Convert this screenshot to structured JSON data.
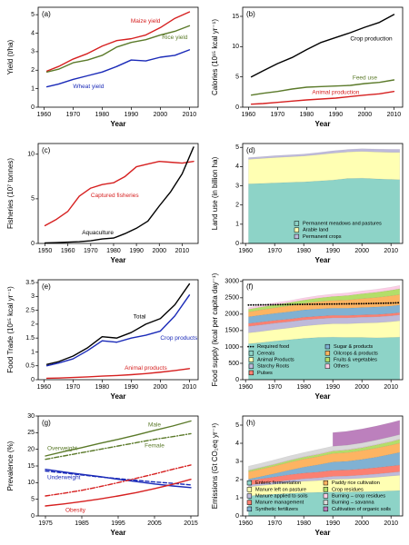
{
  "chart_data": [
    {
      "type": "line",
      "panel": "(a)",
      "ylabel": "Yield (t/ha)",
      "xlabel": "Year",
      "x": [
        1961,
        1965,
        1970,
        1975,
        1980,
        1985,
        1990,
        1995,
        2000,
        2005,
        2010
      ],
      "xlim": [
        1958,
        2013
      ],
      "xticks": [
        1960,
        1970,
        1980,
        1990,
        2000,
        2010
      ],
      "ylim": [
        0,
        5.4
      ],
      "yticks": [
        0,
        1,
        2,
        3,
        4,
        5
      ],
      "series": [
        {
          "name": "Maize yield",
          "color": "#d62020",
          "values": [
            1.95,
            2.2,
            2.6,
            2.9,
            3.3,
            3.6,
            3.7,
            3.9,
            4.3,
            4.8,
            5.15
          ]
        },
        {
          "name": "Rice yield",
          "color": "#5b7a2a",
          "values": [
            1.9,
            2.05,
            2.4,
            2.55,
            2.8,
            3.25,
            3.5,
            3.65,
            3.9,
            4.1,
            4.4
          ]
        },
        {
          "name": "Wheat yield",
          "color": "#1a2ab8",
          "values": [
            1.1,
            1.25,
            1.5,
            1.7,
            1.9,
            2.2,
            2.55,
            2.5,
            2.7,
            2.8,
            3.1
          ]
        }
      ]
    },
    {
      "type": "line",
      "panel": "(b)",
      "ylabel": "Calories (10¹⁵ kcal yr⁻¹)",
      "xlabel": "Year",
      "x": [
        1961,
        1965,
        1970,
        1975,
        1980,
        1985,
        1990,
        1995,
        2000,
        2005,
        2010
      ],
      "xlim": [
        1958,
        2013
      ],
      "xticks": [
        1960,
        1970,
        1980,
        1990,
        2000,
        2010
      ],
      "ylim": [
        0,
        16.5
      ],
      "yticks": [
        0,
        5,
        10,
        15
      ],
      "series": [
        {
          "name": "Crop production",
          "color": "#000000",
          "values": [
            5,
            6,
            7.2,
            8.2,
            9.5,
            10.7,
            11.5,
            12.3,
            13.2,
            14,
            15.3
          ]
        },
        {
          "name": "Feed use",
          "color": "#5b7a2a",
          "values": [
            2,
            2.3,
            2.6,
            3,
            3.3,
            3.4,
            3.5,
            3.6,
            3.9,
            4.1,
            4.5
          ]
        },
        {
          "name": "Animal production",
          "color": "#d62020",
          "values": [
            0.5,
            0.6,
            0.8,
            1,
            1.2,
            1.35,
            1.5,
            1.75,
            2,
            2.2,
            2.6
          ]
        }
      ]
    },
    {
      "type": "line",
      "panel": "(c)",
      "ylabel": "Fisheries (10⁷ tonnes)",
      "xlabel": "Year",
      "x": [
        1950,
        1955,
        1960,
        1965,
        1970,
        1975,
        1980,
        1985,
        1990,
        1995,
        2000,
        2005,
        2010,
        2015
      ],
      "xlim": [
        1947,
        2017
      ],
      "xticks": [
        1950,
        1960,
        1970,
        1980,
        1990,
        2000,
        2010
      ],
      "ylim": [
        0,
        11.2
      ],
      "yticks": [
        0,
        5,
        10
      ],
      "series": [
        {
          "name": "Captured fisheries",
          "color": "#d62020",
          "values": [
            2,
            2.7,
            3.6,
            5.3,
            6.2,
            6.6,
            6.8,
            7.5,
            8.6,
            8.9,
            9.2,
            9.1,
            9,
            9.2
          ]
        },
        {
          "name": "Aquaculture",
          "color": "#000000",
          "values": [
            0.06,
            0.1,
            0.15,
            0.2,
            0.3,
            0.5,
            0.6,
            1.1,
            1.7,
            2.5,
            4.2,
            5.8,
            7.8,
            10.8
          ]
        }
      ]
    },
    {
      "type": "area",
      "panel": "(d)",
      "ylabel": "Land use (in billion ha)",
      "xlabel": "Year",
      "x": [
        1961,
        1965,
        1970,
        1975,
        1980,
        1985,
        1990,
        1995,
        2000,
        2005,
        2010,
        2013
      ],
      "xlim": [
        1959,
        2014
      ],
      "xticks": [
        1960,
        1970,
        1980,
        1990,
        2000,
        2010
      ],
      "ylim": [
        0,
        5.2
      ],
      "yticks": [
        0,
        1,
        2,
        3,
        4,
        5
      ],
      "legend": "bottom-right",
      "legend_columns": 1,
      "series": [
        {
          "name": "Permanent meadows and pastures",
          "color": "#8dd3c7",
          "values": [
            3.1,
            3.12,
            3.15,
            3.18,
            3.2,
            3.25,
            3.3,
            3.38,
            3.4,
            3.36,
            3.33,
            3.32
          ]
        },
        {
          "name": "Arable land",
          "color": "#ffffb3",
          "values": [
            1.28,
            1.3,
            1.32,
            1.33,
            1.35,
            1.37,
            1.4,
            1.38,
            1.39,
            1.4,
            1.41,
            1.42
          ]
        },
        {
          "name": "Permanent crops",
          "color": "#bebada",
          "values": [
            0.09,
            0.09,
            0.1,
            0.1,
            0.1,
            0.11,
            0.12,
            0.13,
            0.14,
            0.15,
            0.16,
            0.16
          ]
        }
      ]
    },
    {
      "type": "line",
      "panel": "(e)",
      "ylabel": "Food Trade (10¹⁵ kcal yr⁻¹)",
      "xlabel": "Year",
      "x": [
        1961,
        1965,
        1970,
        1975,
        1980,
        1985,
        1990,
        1995,
        2000,
        2005,
        2010
      ],
      "xlim": [
        1958,
        2013
      ],
      "xticks": [
        1960,
        1970,
        1980,
        1990,
        2000,
        2010
      ],
      "ylim": [
        0,
        3.6
      ],
      "yticks": [
        0,
        0.5,
        1,
        1.5,
        2,
        2.5,
        3,
        3.5
      ],
      "series": [
        {
          "name": "Total",
          "color": "#000000",
          "values": [
            0.55,
            0.65,
            0.85,
            1.15,
            1.55,
            1.5,
            1.7,
            2,
            2.2,
            2.7,
            3.45
          ]
        },
        {
          "name": "Crop products",
          "color": "#1a2ab8",
          "values": [
            0.5,
            0.6,
            0.75,
            1.05,
            1.4,
            1.35,
            1.5,
            1.6,
            1.75,
            2.3,
            3.05
          ]
        },
        {
          "name": "Animal products",
          "color": "#d62020",
          "values": [
            0.05,
            0.06,
            0.08,
            0.1,
            0.13,
            0.15,
            0.18,
            0.22,
            0.27,
            0.33,
            0.4
          ]
        }
      ]
    },
    {
      "type": "area",
      "panel": "(f)",
      "ylabel": "Food supply (kcal per capita day⁻¹)",
      "xlabel": "Year",
      "x": [
        1961,
        1965,
        1970,
        1975,
        1980,
        1985,
        1990,
        1995,
        2000,
        2005,
        2010,
        2013
      ],
      "xlim": [
        1959,
        2014
      ],
      "xticks": [
        1960,
        1970,
        1980,
        1990,
        2000,
        2010
      ],
      "ylim": [
        0,
        3050
      ],
      "yticks": [
        0,
        500,
        1000,
        1500,
        2000,
        2500,
        3000
      ],
      "legend": "bottom-right",
      "legend_columns": 2,
      "series": [
        {
          "name": "Cereals",
          "color": "#8dd3c7",
          "values": [
            1100,
            1130,
            1180,
            1220,
            1260,
            1290,
            1300,
            1290,
            1290,
            1280,
            1290,
            1300
          ]
        },
        {
          "name": "Animal Products",
          "color": "#ffffb3",
          "values": [
            330,
            340,
            350,
            360,
            380,
            390,
            410,
            420,
            440,
            460,
            480,
            500
          ]
        },
        {
          "name": "Starchy Roots",
          "color": "#bebada",
          "values": [
            200,
            200,
            195,
            190,
            185,
            180,
            180,
            180,
            180,
            180,
            180,
            180
          ]
        },
        {
          "name": "Pulses",
          "color": "#fb8072",
          "values": [
            90,
            88,
            85,
            82,
            80,
            78,
            75,
            72,
            70,
            70,
            70,
            70
          ]
        },
        {
          "name": "Sugar & products",
          "color": "#80b1d3",
          "values": [
            200,
            210,
            215,
            220,
            225,
            225,
            220,
            220,
            225,
            230,
            230,
            230
          ]
        },
        {
          "name": "Oilcrops & products",
          "color": "#fdb462",
          "values": [
            150,
            160,
            170,
            185,
            200,
            220,
            235,
            250,
            270,
            290,
            310,
            320
          ]
        },
        {
          "name": "Fruits & vegetables",
          "color": "#b3de69",
          "values": [
            80,
            85,
            90,
            95,
            100,
            110,
            120,
            135,
            150,
            160,
            170,
            175
          ]
        },
        {
          "name": "Others",
          "color": "#fccde5",
          "values": [
            50,
            55,
            60,
            60,
            65,
            70,
            75,
            80,
            85,
            90,
            95,
            100
          ]
        }
      ],
      "lines": [
        {
          "name": "Required food",
          "color": "#000000",
          "dash": "dotted",
          "values": [
            2280,
            2285,
            2290,
            2295,
            2300,
            2305,
            2310,
            2315,
            2320,
            2330,
            2340,
            2350
          ]
        }
      ]
    },
    {
      "type": "line",
      "panel": "(g)",
      "ylabel": "Prevalence (%)",
      "xlabel": "Year",
      "x": [
        1975,
        1980,
        1985,
        1990,
        1995,
        2000,
        2005,
        2010,
        2015
      ],
      "xlim": [
        1973,
        2017
      ],
      "xticks": [
        1975,
        1985,
        1995,
        2005,
        2015
      ],
      "ylim": [
        0,
        30
      ],
      "yticks": [
        0,
        5,
        10,
        15,
        20,
        25,
        30
      ],
      "groups": [
        {
          "name": "Overweight",
          "color": "#5b7a2a",
          "series": [
            {
              "name": "Male",
              "dash": "solid",
              "values": [
                18,
                19.3,
                20.5,
                21.8,
                23,
                24.3,
                25.7,
                27,
                28.5
              ]
            },
            {
              "name": "Female",
              "dash": "dashdot",
              "values": [
                17,
                18,
                19,
                20,
                21,
                22,
                23,
                23.8,
                24.7
              ]
            }
          ]
        },
        {
          "name": "Underweight",
          "color": "#1a2ab8",
          "series": [
            {
              "dash": "solid",
              "values": [
                14,
                13.2,
                12.5,
                11.8,
                11,
                10.3,
                9.6,
                9,
                8.5
              ]
            },
            {
              "dash": "dash",
              "values": [
                13.5,
                12.9,
                12.3,
                11.7,
                11.2,
                10.7,
                10.2,
                9.8,
                9.3
              ]
            }
          ]
        },
        {
          "name": "Obesity",
          "color": "#d62020",
          "series": [
            {
              "dash": "solid",
              "values": [
                3,
                3.6,
                4.3,
                5.1,
                6,
                7,
                8.2,
                9.5,
                11
              ]
            },
            {
              "dash": "dashdot",
              "values": [
                6,
                6.8,
                7.7,
                8.8,
                10,
                11.3,
                12.6,
                14,
                15.3
              ]
            }
          ]
        }
      ]
    },
    {
      "type": "area",
      "panel": "(h)",
      "ylabel": "Emissions (Gt CO₂eq yr⁻¹)",
      "xlabel": "Year",
      "x": [
        1961,
        1965,
        1970,
        1975,
        1980,
        1985,
        1990,
        1995,
        2000,
        2005,
        2010,
        2013
      ],
      "xlim": [
        1959,
        2014
      ],
      "xticks": [
        1960,
        1970,
        1980,
        1990,
        2000,
        2010
      ],
      "ylim": [
        0,
        5.5
      ],
      "yticks": [
        0,
        1,
        2,
        3,
        4,
        5
      ],
      "legend": "bottom-left",
      "legend_columns": 2,
      "series": [
        {
          "name": "Enteric fermentation",
          "color": "#8dd3c7",
          "values": [
            1.1,
            1.15,
            1.2,
            1.24,
            1.28,
            1.3,
            1.32,
            1.32,
            1.33,
            1.35,
            1.38,
            1.4
          ]
        },
        {
          "name": "Manure left on pasture",
          "color": "#ffffb3",
          "values": [
            0.5,
            0.52,
            0.55,
            0.6,
            0.63,
            0.65,
            0.7,
            0.72,
            0.75,
            0.78,
            0.82,
            0.84
          ]
        },
        {
          "name": "Manure applied to soils",
          "color": "#bebada",
          "values": [
            0.1,
            0.11,
            0.12,
            0.13,
            0.14,
            0.15,
            0.16,
            0.16,
            0.17,
            0.18,
            0.19,
            0.2
          ]
        },
        {
          "name": "Manure management",
          "color": "#fb8072",
          "values": [
            0.25,
            0.26,
            0.28,
            0.3,
            0.31,
            0.32,
            0.33,
            0.33,
            0.34,
            0.35,
            0.36,
            0.36
          ]
        },
        {
          "name": "Synthetic fertilizers",
          "color": "#80b1d3",
          "values": [
            0.08,
            0.12,
            0.18,
            0.25,
            0.33,
            0.4,
            0.46,
            0.48,
            0.52,
            0.58,
            0.65,
            0.7
          ]
        },
        {
          "name": "Paddy rice cultivation",
          "color": "#fdb462",
          "values": [
            0.4,
            0.41,
            0.42,
            0.43,
            0.44,
            0.45,
            0.47,
            0.48,
            0.49,
            0.5,
            0.5,
            0.51
          ]
        },
        {
          "name": "Crop residues",
          "color": "#b3de69",
          "values": [
            0.07,
            0.08,
            0.09,
            0.1,
            0.11,
            0.12,
            0.13,
            0.14,
            0.15,
            0.17,
            0.19,
            0.2
          ]
        },
        {
          "name": "Burning – crop residues",
          "color": "#fccde5",
          "values": [
            0.02,
            0.02,
            0.02,
            0.02,
            0.02,
            0.03,
            0.03,
            0.03,
            0.03,
            0.03,
            0.03,
            0.03
          ]
        },
        {
          "name": "Burning – savanna",
          "color": "#d9d9d9",
          "values": [
            0.22,
            0.22,
            0.23,
            0.23,
            0.23,
            0.24,
            0.24,
            0.24,
            0.24,
            0.24,
            0.24,
            0.24
          ]
        },
        {
          "name": "Cultivation of organic soils",
          "color": "#bc80bd",
          "values": [
            null,
            null,
            null,
            null,
            null,
            null,
            0.75,
            0.76,
            0.77,
            0.77,
            0.78,
            0.78
          ]
        }
      ]
    }
  ]
}
